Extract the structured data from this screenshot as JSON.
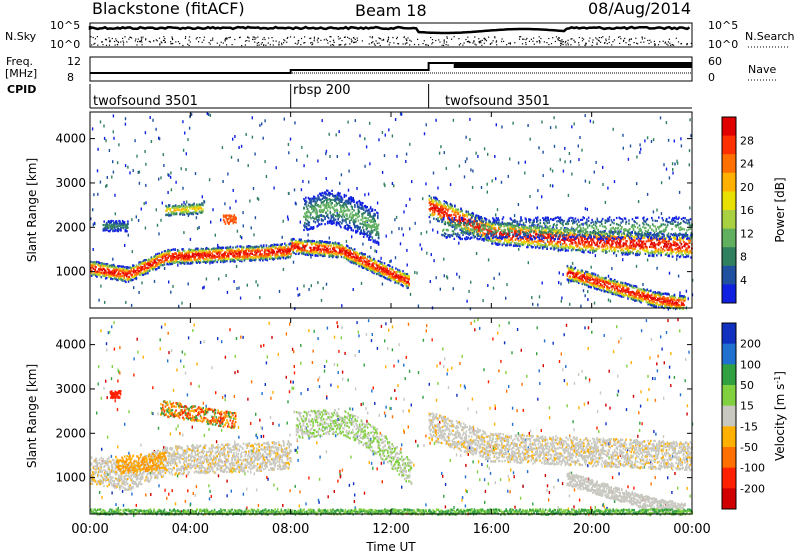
{
  "header": {
    "station": "Blackstone (fitACF)",
    "beam": "Beam 18",
    "date": "08/Aug/2014"
  },
  "side_labels": {
    "nsky": "N.Sky",
    "nsearch": "N.Search",
    "freq_line1": "Freq.",
    "freq_line2": "[MHz]",
    "nave": "Nave",
    "cpid": "CPID"
  },
  "noise_axis": {
    "left_ticks": [
      "10^5",
      "10^0"
    ],
    "right_ticks": [
      "10^5",
      "10^0"
    ]
  },
  "freq_axis": {
    "left_ticks": [
      "12",
      "8"
    ],
    "right_ticks": [
      "60",
      "0"
    ]
  },
  "cpid_segments": [
    {
      "label": "twofsound 3501",
      "start_h": 0,
      "end_h": 8
    },
    {
      "label": "rbsp 200",
      "start_h": 8,
      "end_h": 13.5
    },
    {
      "label": "twofsound 3501",
      "start_h": 13.5,
      "end_h": 24
    }
  ],
  "chart_data": [
    {
      "type": "heatmap",
      "name": "power",
      "ylabel": "Slant Range [km]",
      "ylim": [
        180,
        4600
      ],
      "yticks": [
        1000,
        2000,
        3000,
        4000
      ],
      "xlim": [
        0,
        24
      ],
      "colorbar": {
        "label": "Power [dB]",
        "ticks": [
          "28",
          "24",
          "20",
          "16",
          "12",
          "8",
          "4"
        ],
        "colors": [
          "#e00000",
          "#ff3000",
          "#ff7000",
          "#ffb000",
          "#e8e000",
          "#a8d040",
          "#60b060",
          "#308060",
          "#2050a0",
          "#1020e0"
        ]
      },
      "echo_bands": [
        {
          "x": [
            0,
            1.5,
            3,
            5,
            7,
            8
          ],
          "y": [
            1100,
            950,
            1350,
            1400,
            1450,
            1500
          ],
          "power": "high"
        },
        {
          "x": [
            8,
            10,
            11.5,
            12.7
          ],
          "y": [
            1600,
            1500,
            1100,
            800
          ],
          "power": "high"
        },
        {
          "x": [
            13.5,
            16,
            20,
            24
          ],
          "y": [
            2500,
            1900,
            1700,
            1600
          ],
          "power": "medium"
        },
        {
          "x": [
            19,
            21,
            22.5,
            23.7
          ],
          "y": [
            1000,
            650,
            400,
            300
          ],
          "power": "high"
        }
      ]
    },
    {
      "type": "heatmap",
      "name": "velocity",
      "ylabel": "Slant Range [km]",
      "xlabel": "Time UT",
      "ylim": [
        180,
        4600
      ],
      "yticks": [
        1000,
        2000,
        3000,
        4000
      ],
      "xlim": [
        0,
        24
      ],
      "xticks": [
        "00:00",
        "04:00",
        "08:00",
        "12:00",
        "16:00",
        "20:00",
        "00:00"
      ],
      "colorbar": {
        "label": "Velocity [m s^-1]",
        "ticks": [
          "200",
          "100",
          "50",
          "15",
          "-15",
          "-50",
          "-100",
          "-200"
        ],
        "colors": [
          "#1030c0",
          "#2070d0",
          "#30a040",
          "#80d040",
          "#c8c8c0",
          "#ffb000",
          "#ff7000",
          "#ff2000",
          "#d00000"
        ]
      },
      "ground_scatter": [
        {
          "x": [
            0,
            1.5,
            3,
            5,
            7,
            8
          ],
          "y": [
            1200,
            1050,
            1400,
            1450,
            1500,
            1550
          ]
        },
        {
          "x": [
            13.5,
            16,
            20,
            24
          ],
          "y": [
            2200,
            1700,
            1600,
            1500
          ]
        }
      ]
    }
  ]
}
